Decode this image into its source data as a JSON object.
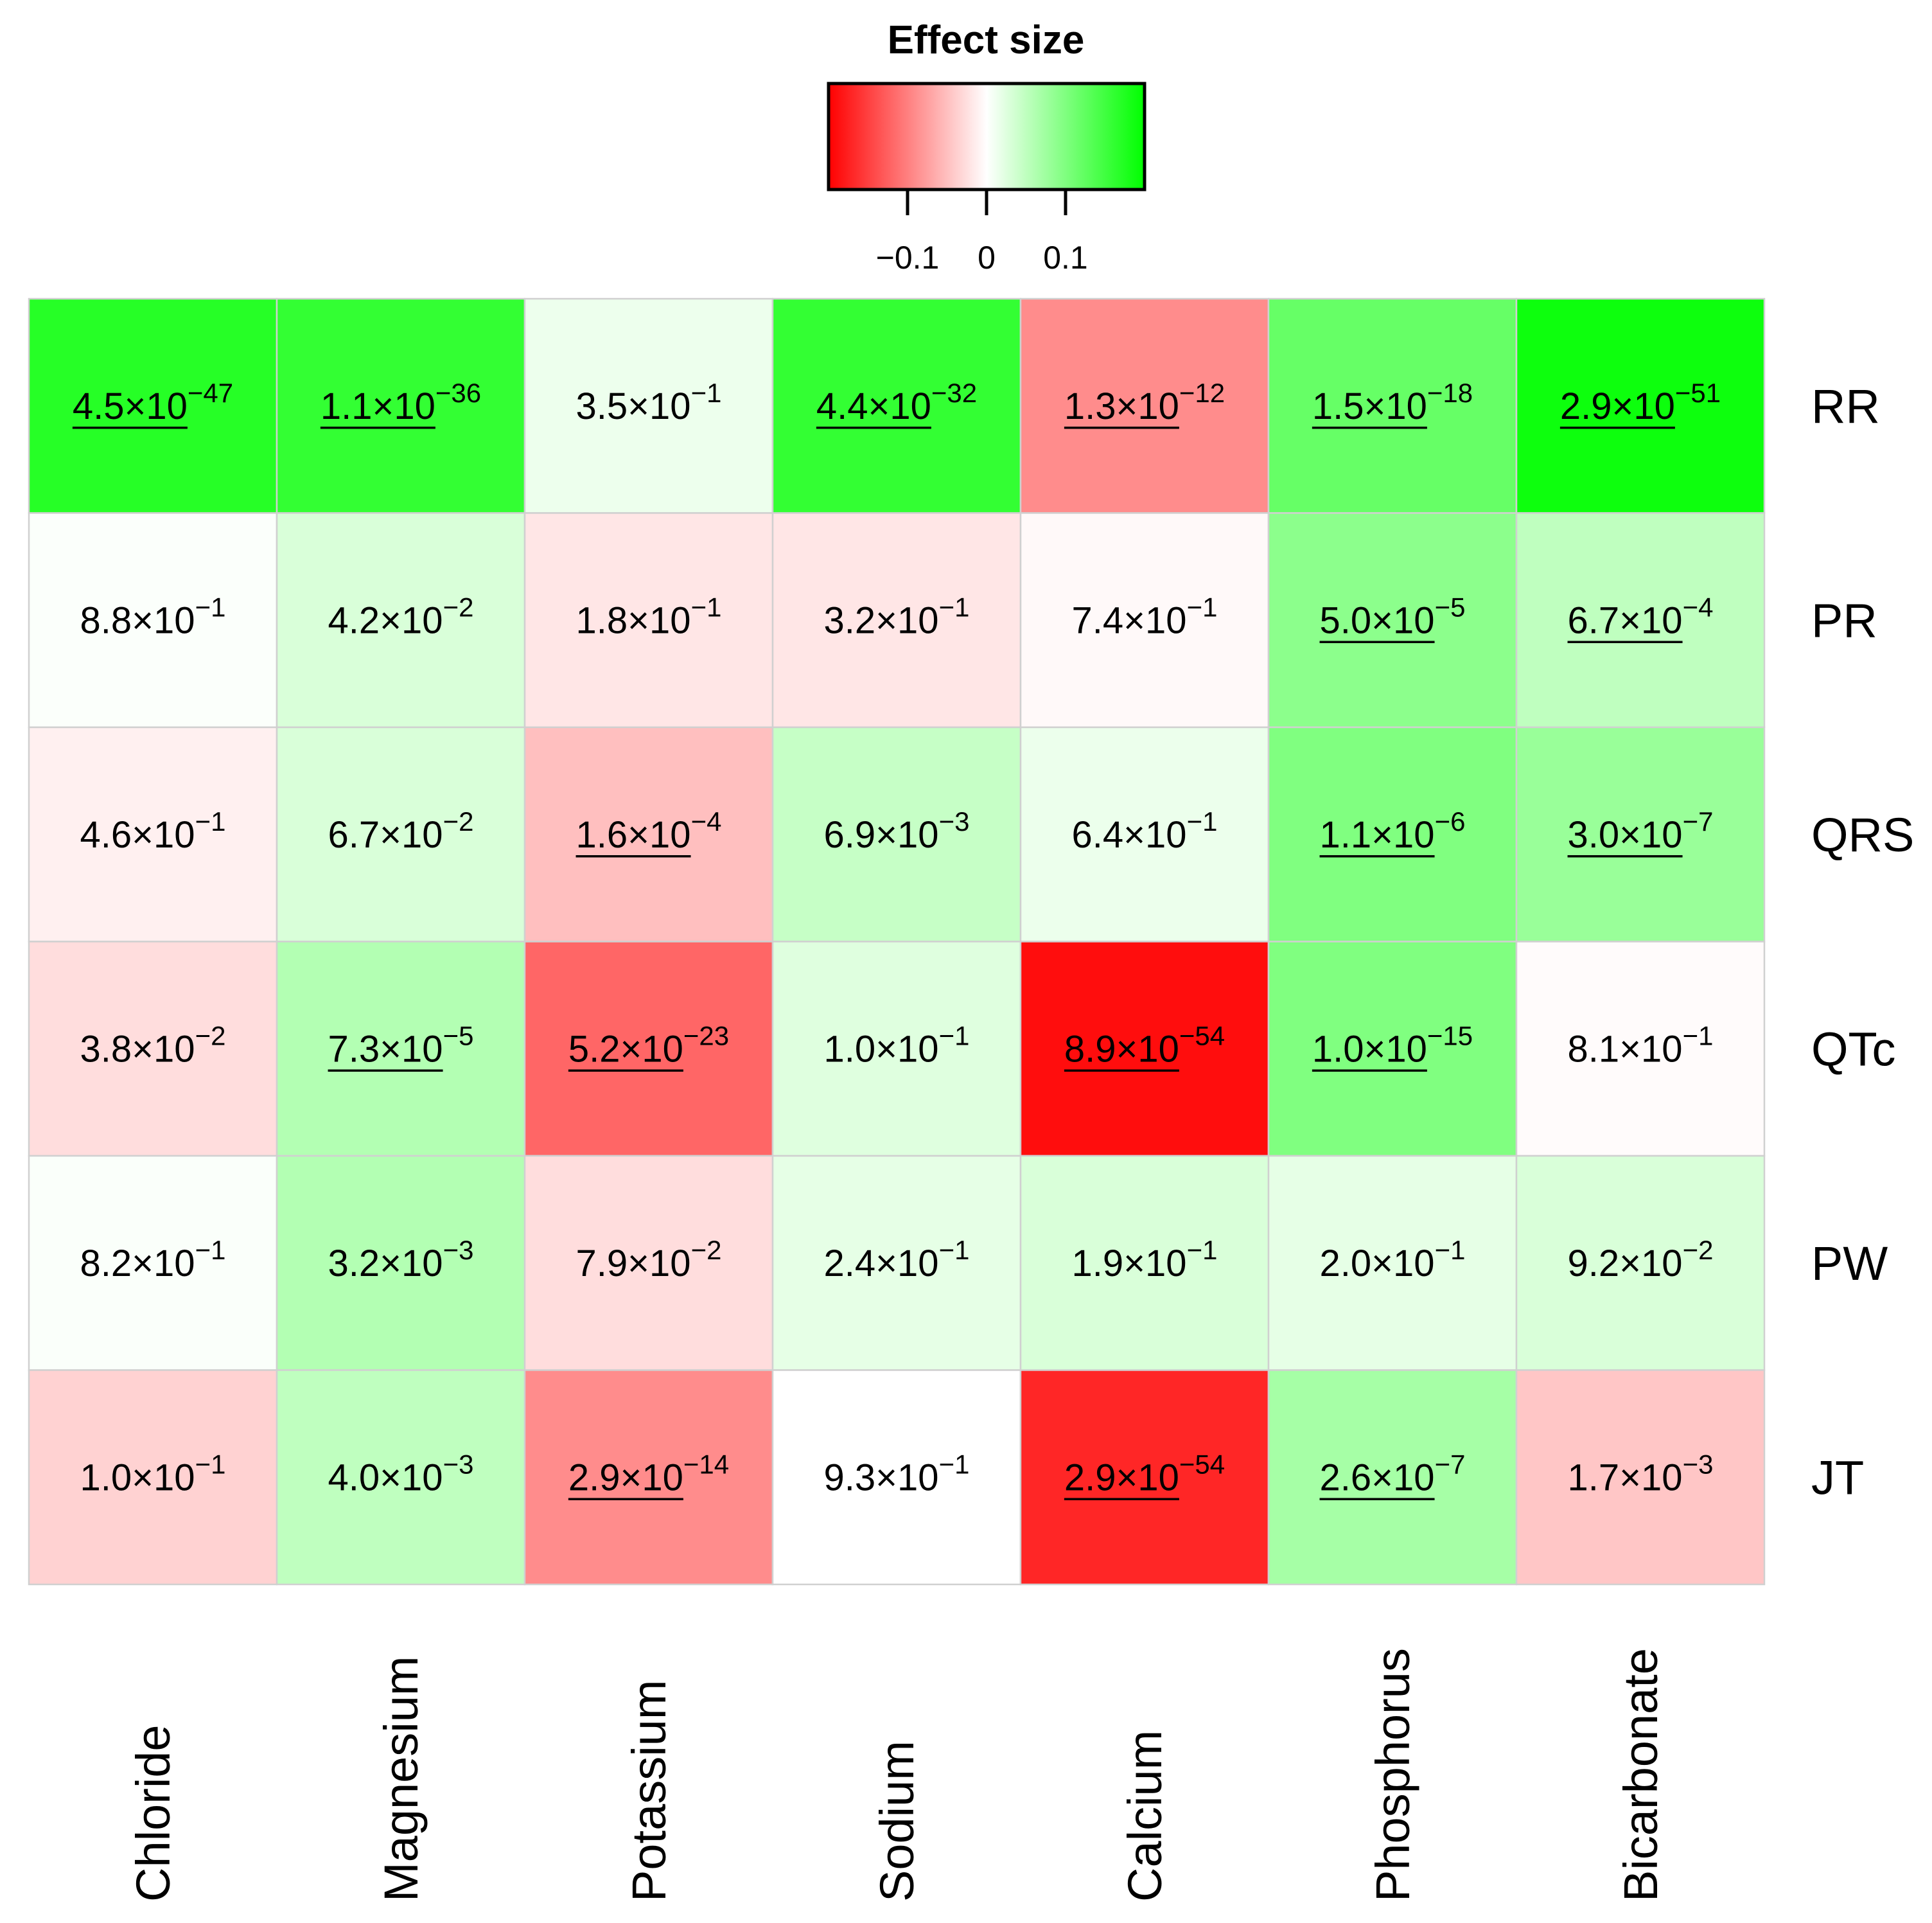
{
  "chart_data": {
    "type": "heatmap",
    "legend": {
      "title": "Effect size",
      "ticks": [
        -0.1,
        0,
        0.1
      ],
      "tick_labels": [
        "−0.1",
        "0",
        "0.1"
      ],
      "range": [
        -0.2,
        0.2
      ],
      "colors": {
        "low": "#ff0000",
        "mid": "#ffffff",
        "high": "#00ff00"
      },
      "placement": "top-center"
    },
    "columns": [
      "Chloride",
      "Magnesium",
      "Potassium",
      "Sodium",
      "Calcium",
      "Phosphorus",
      "Bicarbonate"
    ],
    "rows": [
      "RR",
      "PR",
      "QRS",
      "QTc",
      "PW",
      "JT"
    ],
    "effect_size": [
      [
        0.17,
        0.16,
        0.014,
        0.16,
        -0.09,
        0.12,
        0.19
      ],
      [
        0.003,
        0.03,
        -0.02,
        -0.02,
        -0.005,
        0.09,
        0.05
      ],
      [
        -0.012,
        0.03,
        -0.05,
        0.045,
        0.015,
        0.1,
        0.08
      ],
      [
        -0.027,
        0.06,
        -0.12,
        0.025,
        -0.19,
        0.1,
        -0.003
      ],
      [
        0.004,
        0.06,
        -0.027,
        0.02,
        0.03,
        0.02,
        0.03
      ],
      [
        -0.035,
        0.05,
        -0.09,
        0,
        -0.17,
        0.07,
        -0.045
      ]
    ],
    "p_values": [
      [
        {
          "m": "4.5",
          "e": "−47",
          "sig": true
        },
        {
          "m": "1.1",
          "e": "−36",
          "sig": true
        },
        {
          "m": "3.5",
          "e": "−1",
          "sig": false
        },
        {
          "m": "4.4",
          "e": "−32",
          "sig": true
        },
        {
          "m": "1.3",
          "e": "−12",
          "sig": true
        },
        {
          "m": "1.5",
          "e": "−18",
          "sig": true
        },
        {
          "m": "2.9",
          "e": "−51",
          "sig": true
        }
      ],
      [
        {
          "m": "8.8",
          "e": "−1",
          "sig": false
        },
        {
          "m": "4.2",
          "e": "−2",
          "sig": false
        },
        {
          "m": "1.8",
          "e": "−1",
          "sig": false
        },
        {
          "m": "3.2",
          "e": "−1",
          "sig": false
        },
        {
          "m": "7.4",
          "e": "−1",
          "sig": false
        },
        {
          "m": "5.0",
          "e": "−5",
          "sig": true
        },
        {
          "m": "6.7",
          "e": "−4",
          "sig": true
        }
      ],
      [
        {
          "m": "4.6",
          "e": "−1",
          "sig": false
        },
        {
          "m": "6.7",
          "e": "−2",
          "sig": false
        },
        {
          "m": "1.6",
          "e": "−4",
          "sig": true
        },
        {
          "m": "6.9",
          "e": "−3",
          "sig": false
        },
        {
          "m": "6.4",
          "e": "−1",
          "sig": false
        },
        {
          "m": "1.1",
          "e": "−6",
          "sig": true
        },
        {
          "m": "3.0",
          "e": "−7",
          "sig": true
        }
      ],
      [
        {
          "m": "3.8",
          "e": "−2",
          "sig": false
        },
        {
          "m": "7.3",
          "e": "−5",
          "sig": true
        },
        {
          "m": "5.2",
          "e": "−23",
          "sig": true
        },
        {
          "m": "1.0",
          "e": "−1",
          "sig": false
        },
        {
          "m": "8.9",
          "e": "−54",
          "sig": true
        },
        {
          "m": "1.0",
          "e": "−15",
          "sig": true
        },
        {
          "m": "8.1",
          "e": "−1",
          "sig": false
        }
      ],
      [
        {
          "m": "8.2",
          "e": "−1",
          "sig": false
        },
        {
          "m": "3.2",
          "e": "−3",
          "sig": false
        },
        {
          "m": "7.9",
          "e": "−2",
          "sig": false
        },
        {
          "m": "2.4",
          "e": "−1",
          "sig": false
        },
        {
          "m": "1.9",
          "e": "−1",
          "sig": false
        },
        {
          "m": "2.0",
          "e": "−1",
          "sig": false
        },
        {
          "m": "9.2",
          "e": "−2",
          "sig": false
        }
      ],
      [
        {
          "m": "1.0",
          "e": "−1",
          "sig": false
        },
        {
          "m": "4.0",
          "e": "−3",
          "sig": false
        },
        {
          "m": "2.9",
          "e": "−14",
          "sig": true
        },
        {
          "m": "9.3",
          "e": "−1",
          "sig": false
        },
        {
          "m": "2.9",
          "e": "−54",
          "sig": true
        },
        {
          "m": "2.6",
          "e": "−7",
          "sig": true
        },
        {
          "m": "1.7",
          "e": "−3",
          "sig": false
        }
      ]
    ]
  }
}
